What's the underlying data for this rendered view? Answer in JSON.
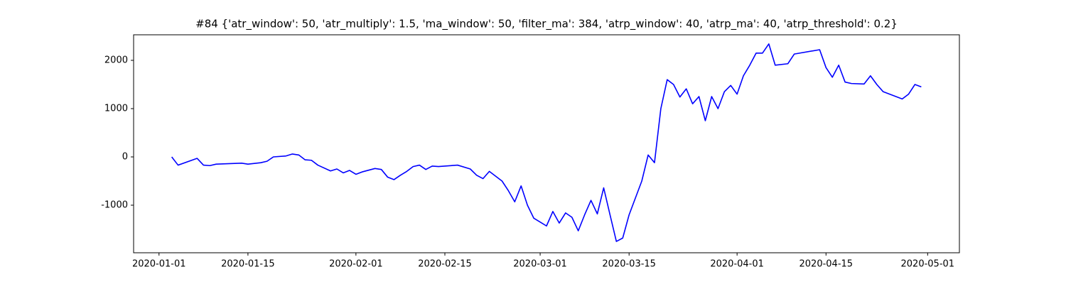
{
  "chart_data": {
    "type": "line",
    "title": "#84 {'atr_window': 50, 'atr_multiply': 1.5, 'ma_window': 50, 'filter_ma': 384, 'atrp_window': 40, 'atrp_ma': 40, 'atrp_threshold': 0.2}",
    "x": [
      "2020-01-03",
      "2020-01-04",
      "2020-01-07",
      "2020-01-08",
      "2020-01-09",
      "2020-01-10",
      "2020-01-14",
      "2020-01-15",
      "2020-01-17",
      "2020-01-18",
      "2020-01-19",
      "2020-01-21",
      "2020-01-22",
      "2020-01-23",
      "2020-01-24",
      "2020-01-25",
      "2020-01-26",
      "2020-01-28",
      "2020-01-29",
      "2020-01-30",
      "2020-01-31",
      "2020-02-01",
      "2020-02-02",
      "2020-02-04",
      "2020-02-05",
      "2020-02-06",
      "2020-02-07",
      "2020-02-08",
      "2020-02-09",
      "2020-02-10",
      "2020-02-11",
      "2020-02-12",
      "2020-02-13",
      "2020-02-14",
      "2020-02-17",
      "2020-02-19",
      "2020-02-20",
      "2020-02-21",
      "2020-02-22",
      "2020-02-24",
      "2020-02-25",
      "2020-02-26",
      "2020-02-27",
      "2020-02-28",
      "2020-02-29",
      "2020-03-02",
      "2020-03-03",
      "2020-03-04",
      "2020-03-05",
      "2020-03-06",
      "2020-03-07",
      "2020-03-08",
      "2020-03-09",
      "2020-03-10",
      "2020-03-11",
      "2020-03-12",
      "2020-03-13",
      "2020-03-14",
      "2020-03-15",
      "2020-03-17",
      "2020-03-18",
      "2020-03-19",
      "2020-03-20",
      "2020-03-21",
      "2020-03-22",
      "2020-03-23",
      "2020-03-24",
      "2020-03-25",
      "2020-03-26",
      "2020-03-27",
      "2020-03-28",
      "2020-03-29",
      "2020-03-30",
      "2020-03-31",
      "2020-04-01",
      "2020-04-02",
      "2020-04-03",
      "2020-04-04",
      "2020-04-05",
      "2020-04-06",
      "2020-04-07",
      "2020-04-09",
      "2020-04-10",
      "2020-04-14",
      "2020-04-15",
      "2020-04-16",
      "2020-04-17",
      "2020-04-18",
      "2020-04-19",
      "2020-04-21",
      "2020-04-22",
      "2020-04-23",
      "2020-04-24",
      "2020-04-27",
      "2020-04-28",
      "2020-04-29",
      "2020-04-30"
    ],
    "series": [
      {
        "color": "#0000ff",
        "values": [
          0,
          -170,
          -30,
          -170,
          -180,
          -150,
          -130,
          -150,
          -120,
          -90,
          0,
          20,
          60,
          40,
          -60,
          -70,
          -170,
          -290,
          -250,
          -330,
          -280,
          -360,
          -310,
          -240,
          -260,
          -420,
          -470,
          -380,
          -300,
          -200,
          -170,
          -260,
          -190,
          -200,
          -170,
          -250,
          -380,
          -450,
          -300,
          -500,
          -700,
          -930,
          -600,
          -1000,
          -1270,
          -1430,
          -1130,
          -1370,
          -1160,
          -1250,
          -1530,
          -1200,
          -900,
          -1180,
          -640,
          -1200,
          -1750,
          -1680,
          -1200,
          -500,
          40,
          -120,
          1000,
          1600,
          1500,
          1240,
          1410,
          1100,
          1250,
          750,
          1250,
          1000,
          1350,
          1480,
          1300,
          1680,
          1900,
          2150,
          2150,
          2340,
          1900,
          1930,
          2130,
          2220,
          1850,
          1650,
          1900,
          1550,
          1520,
          1510,
          1680,
          1500,
          1350,
          1200,
          1300,
          1500,
          1450
        ]
      }
    ],
    "xlim": [
      "2019-12-28",
      "2020-05-06"
    ],
    "xticks": [
      "2020-01-01",
      "2020-01-15",
      "2020-02-01",
      "2020-02-15",
      "2020-03-01",
      "2020-03-15",
      "2020-04-01",
      "2020-04-15",
      "2020-05-01"
    ],
    "ylim": [
      -1985,
      2529
    ],
    "yticks": [
      -1000,
      0,
      1000,
      2000
    ],
    "grid": false
  }
}
